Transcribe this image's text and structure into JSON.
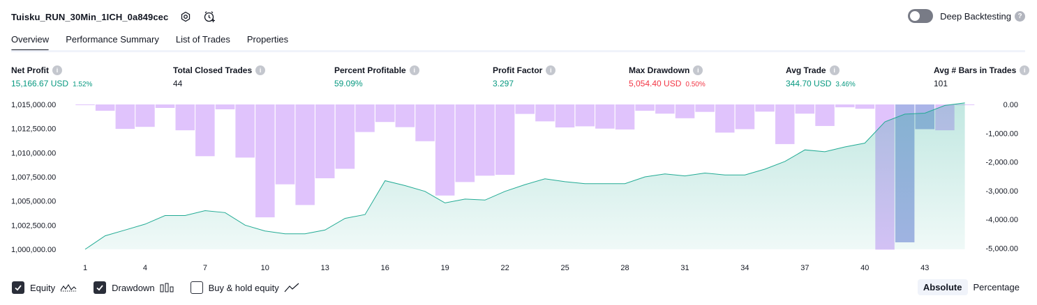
{
  "header": {
    "title": "Tuisku_RUN_30Min_1ICH_0a849cec",
    "deep_backtesting_label": "Deep Backtesting",
    "deep_backtesting_enabled": false
  },
  "tabs": [
    {
      "label": "Overview",
      "active": true
    },
    {
      "label": "Performance Summary",
      "active": false
    },
    {
      "label": "List of Trades",
      "active": false
    },
    {
      "label": "Properties",
      "active": false
    }
  ],
  "metrics": {
    "net_profit": {
      "label": "Net Profit",
      "value": "15,166.67 USD",
      "pct": "1.52%"
    },
    "total_closed_trades": {
      "label": "Total Closed Trades",
      "value": "44"
    },
    "percent_profitable": {
      "label": "Percent Profitable",
      "value": "59.09%"
    },
    "profit_factor": {
      "label": "Profit Factor",
      "value": "3.297"
    },
    "max_drawdown": {
      "label": "Max Drawdown",
      "value": "5,054.40 USD",
      "pct": "0.50%"
    },
    "avg_trade": {
      "label": "Avg Trade",
      "value": "344.70 USD",
      "pct": "3.46%"
    },
    "avg_bars": {
      "label": "Avg # Bars in Trades",
      "value": "101"
    }
  },
  "chart_data": {
    "type": "area",
    "x_ticks": [
      "1",
      "4",
      "7",
      "10",
      "13",
      "16",
      "19",
      "22",
      "25",
      "28",
      "31",
      "34",
      "37",
      "40",
      "43"
    ],
    "left_axis_ticks": [
      "1,015,000.00",
      "1,012,500.00",
      "1,010,000.00",
      "1,007,500.00",
      "1,005,000.00",
      "1,002,500.00",
      "1,000,000.00"
    ],
    "right_axis_ticks": [
      "0.00",
      "-1,000.00",
      "-2,000.00",
      "-3,000.00",
      "-4,000.00",
      "-5,000.00"
    ],
    "left_ylim": [
      1000000,
      1015000
    ],
    "right_ylim": [
      -5054.4,
      0
    ],
    "x": [
      1,
      2,
      3,
      4,
      5,
      6,
      7,
      8,
      9,
      10,
      11,
      12,
      13,
      14,
      15,
      16,
      17,
      18,
      19,
      20,
      21,
      22,
      23,
      24,
      25,
      26,
      27,
      28,
      29,
      30,
      31,
      32,
      33,
      34,
      35,
      36,
      37,
      38,
      39,
      40,
      41,
      42,
      43,
      44,
      45
    ],
    "series": [
      {
        "name": "Equity",
        "axis": "left",
        "color": "#22ab94",
        "values": [
          1000000,
          1001400,
          1002000,
          1002600,
          1003500,
          1003500,
          1004000,
          1003800,
          1002500,
          1001900,
          1001600,
          1001600,
          1002000,
          1003200,
          1003600,
          1007100,
          1006600,
          1006000,
          1004800,
          1005200,
          1005100,
          1006000,
          1006700,
          1007300,
          1007000,
          1006800,
          1006800,
          1006800,
          1007500,
          1007800,
          1007600,
          1007900,
          1007700,
          1007700,
          1008300,
          1009100,
          1010300,
          1010100,
          1010600,
          1011000,
          1013200,
          1014000,
          1014100,
          1014900,
          1015167
        ]
      },
      {
        "name": "Drawdown",
        "axis": "right",
        "color": "#e0c3fc",
        "values": [
          -20,
          -220,
          -850,
          -780,
          -120,
          -900,
          -1800,
          -170,
          -1850,
          -3930,
          -2780,
          -3500,
          -2570,
          -2240,
          -960,
          -610,
          -790,
          -1280,
          -3170,
          -2700,
          -2480,
          -2450,
          -330,
          -590,
          -800,
          -760,
          -840,
          -870,
          -220,
          -320,
          -480,
          -260,
          -980,
          -860,
          -250,
          -1380,
          -320,
          -750,
          -100,
          -150,
          -5054,
          -4800,
          -860,
          -900,
          -20
        ]
      }
    ],
    "highlight_range": [
      42,
      43
    ],
    "highlight_color": "#aab4e8"
  },
  "legend": [
    {
      "label": "Equity",
      "checked": true,
      "icon": "equity-line-icon"
    },
    {
      "label": "Drawdown",
      "checked": true,
      "icon": "drawdown-bars-icon"
    },
    {
      "label": "Buy & hold equity",
      "checked": false,
      "icon": "buy-hold-line-icon"
    }
  ],
  "modes": [
    {
      "label": "Absolute",
      "active": true
    },
    {
      "label": "Percentage",
      "active": false
    }
  ]
}
